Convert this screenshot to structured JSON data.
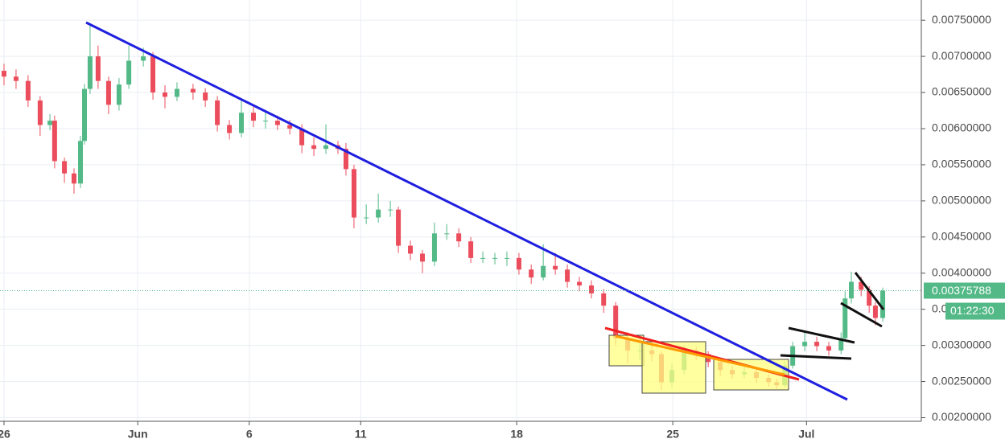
{
  "chart_data": {
    "type": "candlestick",
    "up_color": "#53b987",
    "down_color": "#eb4d5c",
    "grid": true,
    "xlim": [
      -0.18,
      41.15
    ],
    "xticks": [
      {
        "value": 0,
        "label": "26"
      },
      {
        "value": 6,
        "label": "Jun"
      },
      {
        "value": 11,
        "label": "6"
      },
      {
        "value": 16,
        "label": "11"
      },
      {
        "value": 23,
        "label": "18"
      },
      {
        "value": 30,
        "label": "25"
      },
      {
        "value": 36,
        "label": "Jul"
      }
    ],
    "ylim": [
      0.00195,
      0.00778
    ],
    "yticks": [
      {
        "value": 0.002,
        "label": "0.00200000"
      },
      {
        "value": 0.0025,
        "label": "0.00250000"
      },
      {
        "value": 0.003,
        "label": "0.00300000"
      },
      {
        "value": 0.0035,
        "label": "0.00350000"
      },
      {
        "value": 0.004,
        "label": "0.00400000"
      },
      {
        "value": 0.0045,
        "label": "0.00450000"
      },
      {
        "value": 0.005,
        "label": "0.00500000"
      },
      {
        "value": 0.0055,
        "label": "0.00550000"
      },
      {
        "value": 0.006,
        "label": "0.00600000"
      },
      {
        "value": 0.0065,
        "label": "0.00650000"
      },
      {
        "value": 0.007,
        "label": "0.00700000"
      },
      {
        "value": 0.0075,
        "label": "0.00750000"
      }
    ],
    "price_line": {
      "value": 0.00375788,
      "label": "0.00375788",
      "countdown": "01:22:30",
      "color": "#53b987"
    },
    "x": [
      0.0,
      0.54,
      1.08,
      1.62,
      2.06,
      2.27,
      2.71,
      3.14,
      3.43,
      3.61,
      3.86,
      4.22,
      4.69,
      5.16,
      5.6,
      6.25,
      6.68,
      7.22,
      7.76,
      8.48,
      9.03,
      9.57,
      10.11,
      10.65,
      11.19,
      11.73,
      12.27,
      12.82,
      13.36,
      13.9,
      14.44,
      14.98,
      15.34,
      15.7,
      16.25,
      16.79,
      17.33,
      17.69,
      18.23,
      18.77,
      19.31,
      19.86,
      20.4,
      20.94,
      21.48,
      22.02,
      22.56,
      23.1,
      23.65,
      24.19,
      24.73,
      25.27,
      25.81,
      26.35,
      26.9,
      27.44,
      27.98,
      28.52,
      29.06,
      29.49,
      29.96,
      30.51,
      31.05,
      31.59,
      32.13,
      32.67,
      33.21,
      33.75,
      34.3,
      34.66,
      35.02,
      35.38,
      35.92,
      36.46,
      37.0,
      37.55,
      37.73,
      38.01,
      38.45,
      38.81,
      39.09,
      39.42
    ],
    "open": [
      0.0068,
      0.00672,
      0.00666,
      0.00639,
      0.00605,
      0.00611,
      0.00555,
      0.00538,
      0.00524,
      0.00583,
      0.00655,
      0.007,
      0.00666,
      0.00633,
      0.00661,
      0.00694,
      0.007,
      0.0065,
      0.00644,
      0.00655,
      0.0065,
      0.00639,
      0.00605,
      0.00594,
      0.00622,
      0.00611,
      0.00611,
      0.00605,
      0.006,
      0.00577,
      0.00572,
      0.00577,
      0.00572,
      0.00544,
      0.00477,
      0.00477,
      0.00488,
      0.00488,
      0.00438,
      0.00427,
      0.00416,
      0.00455,
      0.00455,
      0.00444,
      0.00421,
      0.00421,
      0.00421,
      0.00421,
      0.00405,
      0.00394,
      0.0041,
      0.00405,
      0.00388,
      0.00383,
      0.00372,
      0.00355,
      0.0031,
      0.00293,
      0.00293,
      0.00288,
      0.00249,
      0.00266,
      0.00293,
      0.00288,
      0.00277,
      0.00266,
      0.0026,
      0.00263,
      0.00255,
      0.00249,
      0.00245,
      0.00272,
      0.00299,
      0.00305,
      0.00299,
      0.00293,
      0.0031,
      0.00365,
      0.00388,
      0.00377,
      0.00355,
      0.00338
    ],
    "high": [
      0.0069,
      0.00682,
      0.00674,
      0.00645,
      0.0062,
      0.00618,
      0.0056,
      0.00545,
      0.0059,
      0.00662,
      0.00745,
      0.00715,
      0.00672,
      0.0067,
      0.00715,
      0.00712,
      0.00706,
      0.0066,
      0.00664,
      0.00662,
      0.00656,
      0.00645,
      0.00612,
      0.0064,
      0.0063,
      0.00622,
      0.00618,
      0.00612,
      0.00606,
      0.00588,
      0.00606,
      0.00583,
      0.0058,
      0.0055,
      0.00495,
      0.0051,
      0.005,
      0.00492,
      0.00445,
      0.00432,
      0.0047,
      0.00468,
      0.00462,
      0.0045,
      0.0043,
      0.00428,
      0.0043,
      0.00428,
      0.00412,
      0.0044,
      0.00428,
      0.00412,
      0.00395,
      0.0039,
      0.00378,
      0.0036,
      0.00318,
      0.00312,
      0.00305,
      0.00292,
      0.00275,
      0.003,
      0.00298,
      0.00292,
      0.00282,
      0.00272,
      0.0027,
      0.00268,
      0.0026,
      0.00254,
      0.00278,
      0.00305,
      0.00318,
      0.00312,
      0.00305,
      0.00318,
      0.00375,
      0.00402,
      0.00395,
      0.00382,
      0.0036,
      0.0038
    ],
    "low": [
      0.0066,
      0.00655,
      0.0063,
      0.0059,
      0.00598,
      0.00545,
      0.00525,
      0.0051,
      0.00518,
      0.00578,
      0.00648,
      0.00655,
      0.0062,
      0.00625,
      0.00655,
      0.00686,
      0.0064,
      0.00628,
      0.00638,
      0.0064,
      0.0063,
      0.00596,
      0.00585,
      0.00588,
      0.00602,
      0.006,
      0.00598,
      0.00592,
      0.00566,
      0.00562,
      0.00565,
      0.00565,
      0.00535,
      0.00462,
      0.00468,
      0.0047,
      0.00478,
      0.00428,
      0.00418,
      0.004,
      0.0041,
      0.00446,
      0.00436,
      0.00414,
      0.00414,
      0.00412,
      0.0041,
      0.00398,
      0.00385,
      0.0039,
      0.00398,
      0.0038,
      0.00375,
      0.00365,
      0.00345,
      0.003,
      0.00275,
      0.0028,
      0.00278,
      0.00238,
      0.00242,
      0.0026,
      0.0028,
      0.0027,
      0.00258,
      0.00254,
      0.00255,
      0.00248,
      0.00243,
      0.0024,
      0.00242,
      0.00268,
      0.00292,
      0.00292,
      0.00286,
      0.00288,
      0.00305,
      0.00358,
      0.00368,
      0.00345,
      0.00328,
      0.00333
    ],
    "close": [
      0.00672,
      0.00666,
      0.00639,
      0.00605,
      0.00611,
      0.00555,
      0.00538,
      0.00524,
      0.00583,
      0.00655,
      0.007,
      0.00666,
      0.00633,
      0.00661,
      0.00694,
      0.007,
      0.0065,
      0.00644,
      0.00655,
      0.0065,
      0.00639,
      0.00605,
      0.00594,
      0.00622,
      0.00611,
      0.00611,
      0.00605,
      0.006,
      0.00577,
      0.00572,
      0.00577,
      0.00572,
      0.00544,
      0.00477,
      0.00477,
      0.00488,
      0.00488,
      0.00438,
      0.00427,
      0.00416,
      0.00455,
      0.00455,
      0.00444,
      0.00421,
      0.00421,
      0.00421,
      0.00421,
      0.00405,
      0.00394,
      0.0041,
      0.00405,
      0.00388,
      0.00383,
      0.00372,
      0.00355,
      0.0031,
      0.00293,
      0.00293,
      0.00288,
      0.00249,
      0.00266,
      0.00293,
      0.00288,
      0.00277,
      0.00266,
      0.0026,
      0.00263,
      0.00255,
      0.00249,
      0.00245,
      0.00272,
      0.00299,
      0.00305,
      0.00299,
      0.00293,
      0.0031,
      0.00365,
      0.00388,
      0.00377,
      0.00355,
      0.00338,
      0.00375788
    ]
  }
}
